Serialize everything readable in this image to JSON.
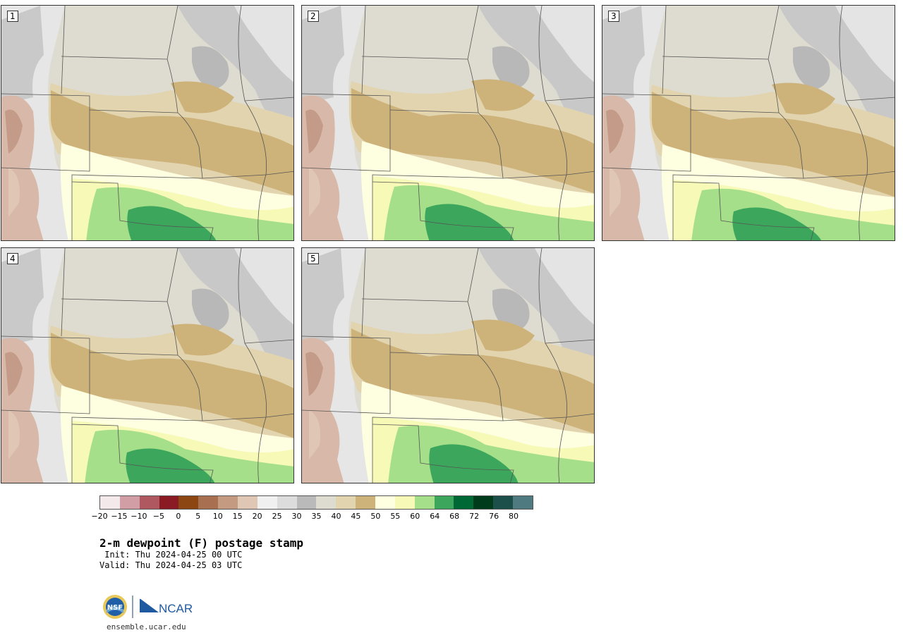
{
  "panels": [
    {
      "label": "1"
    },
    {
      "label": "2"
    },
    {
      "label": "3"
    },
    {
      "label": "4"
    },
    {
      "label": "5"
    }
  ],
  "colorbar": {
    "colors": [
      "#f3e8ea",
      "#d19ea5",
      "#b05860",
      "#8a1a24",
      "#8c4612",
      "#a87050",
      "#c49a80",
      "#e0c6b4",
      "#f0f0f0",
      "#dcdcdc",
      "#bababa",
      "#dedcd0",
      "#e2d4ae",
      "#cdb27a",
      "#fefee0",
      "#f6fab6",
      "#a6df8a",
      "#3ca75c",
      "#006834",
      "#003c1c",
      "#1c4e4a",
      "#4e7a80"
    ],
    "ticks": [
      "−20",
      "−15",
      "−10",
      "−5",
      "0",
      "5",
      "10",
      "15",
      "20",
      "25",
      "30",
      "35",
      "40",
      "45",
      "50",
      "55",
      "60",
      "64",
      "68",
      "72",
      "76",
      "80"
    ]
  },
  "title": "2-m dewpoint (F) postage stamp",
  "init": " Init: Thu 2024-04-25 00 UTC",
  "valid": "Valid: Thu 2024-04-25 03 UTC",
  "logos": {
    "left": "NSF",
    "right": "NCAR"
  },
  "site": "ensemble.ucar.edu"
}
